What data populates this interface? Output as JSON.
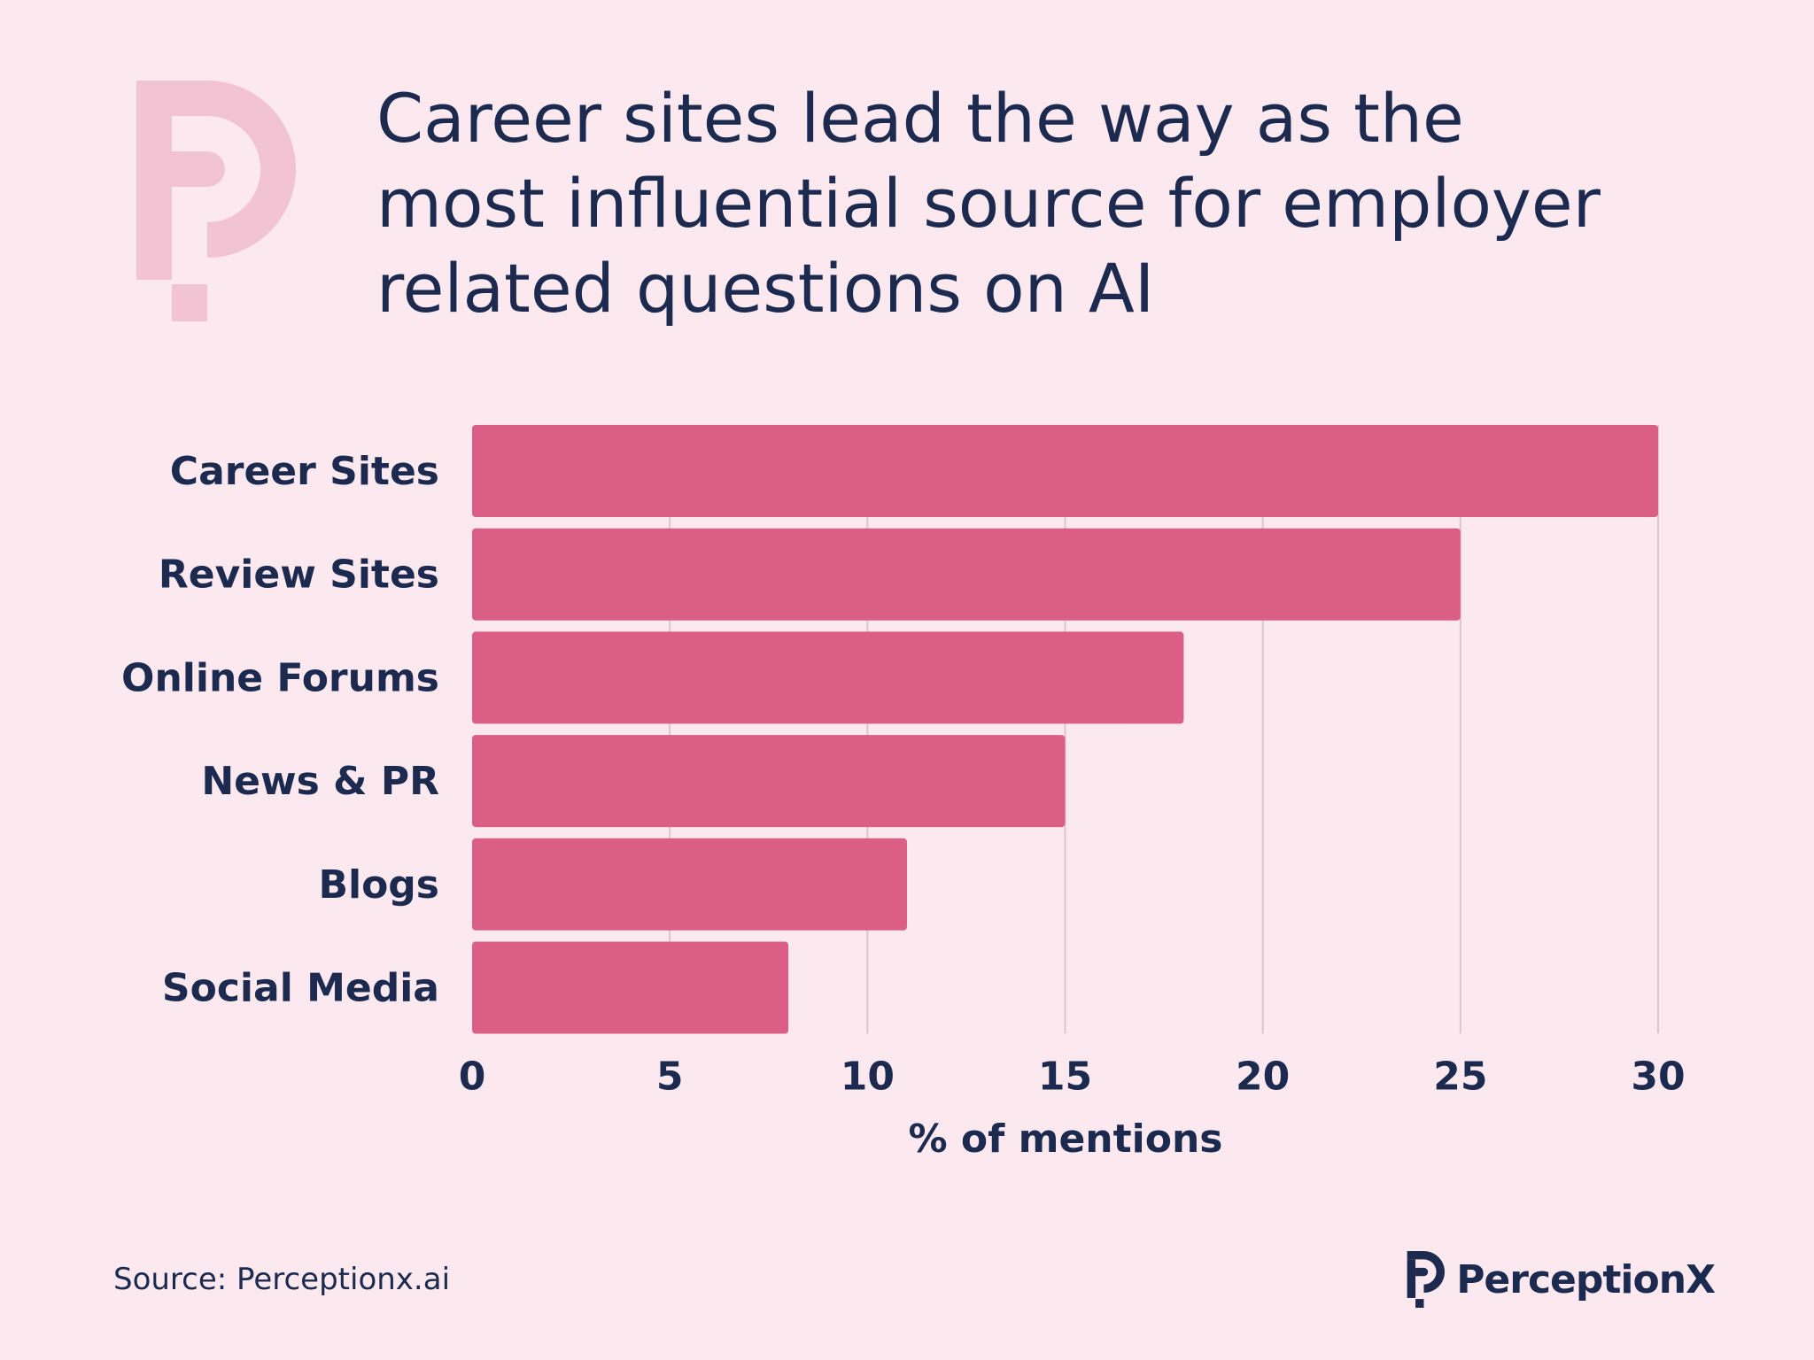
{
  "header": {
    "title": "Career sites lead the way as the\nmost influential source for employer\nrelated questions on AI"
  },
  "colors": {
    "background": "#fce9ef",
    "bar": "#db5e87",
    "text": "#1b2a4e",
    "logo_light": "#f2c3d2",
    "grid": "#d8c7cf"
  },
  "chart_data": {
    "type": "bar",
    "orientation": "horizontal",
    "categories": [
      "Career Sites",
      "Review Sites",
      "Online Forums",
      "News & PR",
      "Blogs",
      "Social Media"
    ],
    "values": [
      30,
      25,
      18,
      15,
      11,
      8
    ],
    "xlabel": "% of mentions",
    "ylabel": "",
    "xlim": [
      0,
      30
    ],
    "xticks": [
      0,
      5,
      10,
      15,
      20,
      25,
      30
    ],
    "grid": "vertical"
  },
  "footer": {
    "source": "Source: Perceptionx.ai",
    "brand": "PerceptionX",
    "logo_icon": "perceptionx-logo-icon"
  }
}
